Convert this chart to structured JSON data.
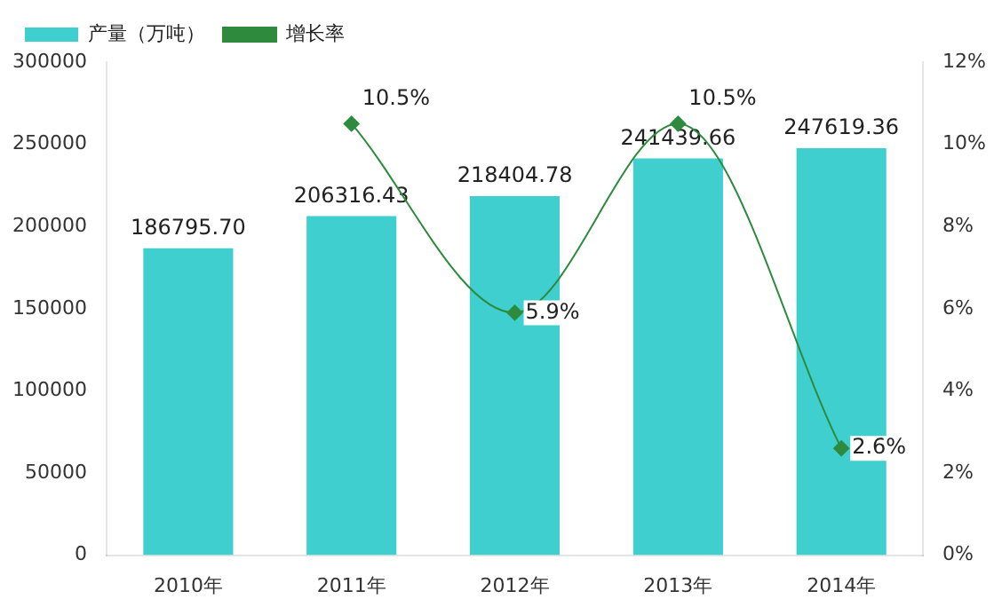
{
  "chart_data": {
    "type": "bar",
    "categories": [
      "2010年",
      "2011年",
      "2012年",
      "2013年",
      "2014年"
    ],
    "series": [
      {
        "name": "产量（万吨）",
        "color": "#3fcfcf",
        "values": [
          186795.7,
          206316.43,
          218404.78,
          241439.66,
          247619.36
        ],
        "value_labels": [
          "186795.70",
          "206316.43",
          "218404.78",
          "241439.66",
          "247619.36"
        ]
      },
      {
        "name": "增长率",
        "type": "line",
        "axis": "y2",
        "color": "#2e8b3e",
        "marker": "diamond",
        "values": [
          null,
          10.5,
          5.9,
          10.5,
          2.6
        ],
        "value_labels": [
          null,
          "10.5%",
          "5.9%",
          "10.5%",
          "2.6%"
        ]
      }
    ],
    "ylim": [
      0,
      300000
    ],
    "yticks": [
      0,
      50000,
      100000,
      150000,
      200000,
      250000,
      300000
    ],
    "y2lim": [
      0,
      12
    ],
    "y2ticks": [
      {
        "value": 0,
        "label": "0%"
      },
      {
        "value": 2,
        "label": "2%"
      },
      {
        "value": 4,
        "label": "4%"
      },
      {
        "value": 6,
        "label": "6%"
      },
      {
        "value": 8,
        "label": "8%"
      },
      {
        "value": 10,
        "label": "10%"
      },
      {
        "value": 12,
        "label": "12%"
      }
    ],
    "grid": false,
    "legend": "top left"
  }
}
